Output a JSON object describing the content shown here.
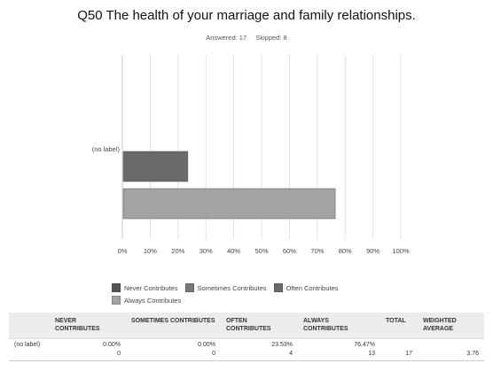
{
  "title": "Q50 The health of your marriage and family relationships.",
  "answered": "Answered: 17",
  "skipped": "Skipped: 8",
  "colors": {
    "never": "#555555",
    "sometimes": "#777777",
    "often": "#6a6a6a",
    "always": "#a3a3a3",
    "grid": "#e2e2e2"
  },
  "chart_data": {
    "type": "bar",
    "orientation": "horizontal",
    "categories": [
      "(no label)"
    ],
    "series": [
      {
        "name": "Never Contributes",
        "values": [
          0.0
        ]
      },
      {
        "name": "Sometimes Contributes",
        "values": [
          0.0
        ]
      },
      {
        "name": "Often Contributes",
        "values": [
          23.53
        ]
      },
      {
        "name": "Always Contributes",
        "values": [
          76.47
        ]
      }
    ],
    "x_ticks": [
      "0%",
      "10%",
      "20%",
      "30%",
      "40%",
      "50%",
      "60%",
      "70%",
      "80%",
      "90%",
      "100%"
    ],
    "xlim": [
      0,
      100
    ],
    "grid": true,
    "legend_position": "bottom"
  },
  "legend": [
    {
      "label": "Never Contributes",
      "color": "#555555"
    },
    {
      "label": "Sometimes Contributes",
      "color": "#777777"
    },
    {
      "label": "Often Contributes",
      "color": "#6a6a6a"
    },
    {
      "label": "Always Contributes",
      "color": "#a3a3a3"
    }
  ],
  "table": {
    "headers": [
      "",
      "NEVER CONTRIBUTES",
      "SOMETIMES CONTRIBUTES",
      "OFTEN CONTRIBUTES",
      "ALWAYS CONTRIBUTES",
      "TOTAL",
      "WEIGHTED AVERAGE"
    ],
    "row": {
      "label": "(no label)",
      "never_pct": "0.00%",
      "never_n": "0",
      "sometimes_pct": "0.00%",
      "sometimes_n": "0",
      "often_pct": "23.53%",
      "often_n": "4",
      "always_pct": "76.47%",
      "always_n": "13",
      "total": "17",
      "weighted_average": "3.76"
    }
  }
}
